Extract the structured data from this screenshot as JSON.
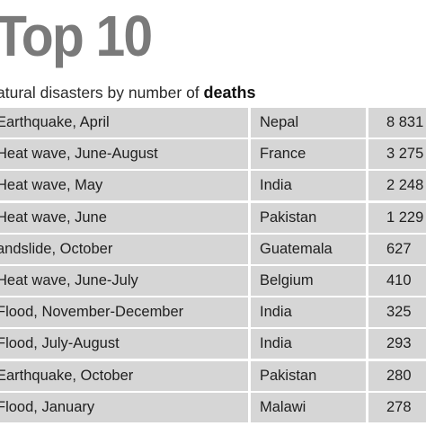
{
  "header": {
    "title": "Top 10",
    "subtitle_prefix": "atural disasters by number of ",
    "subtitle_emphasis": "deaths"
  },
  "chart_data": {
    "type": "table",
    "title": "Top 10",
    "subtitle": "atural disasters by number of deaths",
    "columns": [],
    "rows": [
      {
        "event": "Earthquake, April",
        "country": "Nepal",
        "deaths": "8 831"
      },
      {
        "event": "Heat wave, June-August",
        "country": "France",
        "deaths": "3 275"
      },
      {
        "event": "Heat wave, May",
        "country": "India",
        "deaths": "2 248"
      },
      {
        "event": "Heat wave, June",
        "country": "Pakistan",
        "deaths": "1 229"
      },
      {
        "event": "andslide, October",
        "country": "Guatemala",
        "deaths": "627"
      },
      {
        "event": "Heat wave, June-July",
        "country": "Belgium",
        "deaths": "410"
      },
      {
        "event": "Flood, November-December",
        "country": "India",
        "deaths": "325"
      },
      {
        "event": "Flood, July-August",
        "country": "India",
        "deaths": "293"
      },
      {
        "event": "Earthquake, October",
        "country": "Pakistan",
        "deaths": "280"
      },
      {
        "event": "Flood, January",
        "country": "Malawi",
        "deaths": "278"
      }
    ]
  },
  "colors": {
    "title": "#7a7a7a",
    "row_fill": "#d6d6d6",
    "text": "#1f1f1f"
  }
}
